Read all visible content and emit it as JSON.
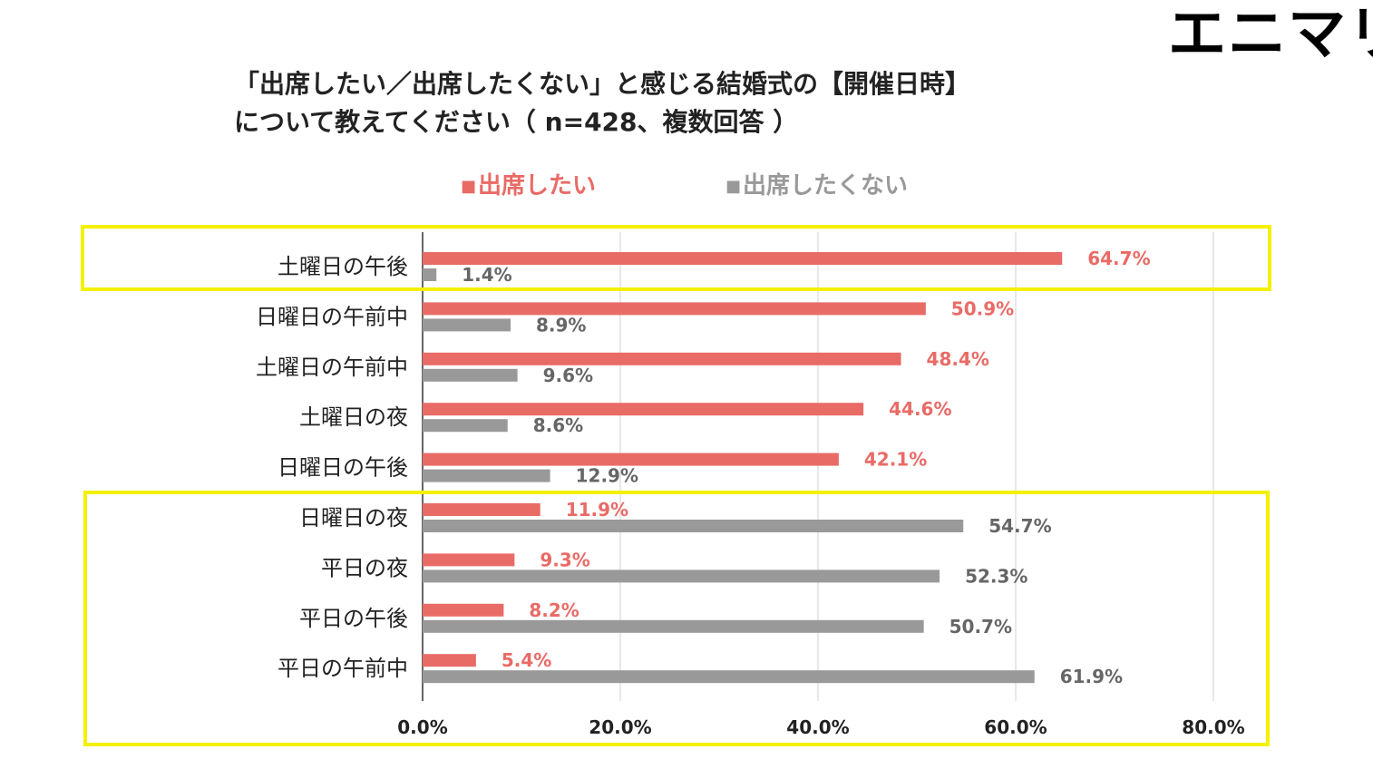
{
  "brand": {
    "logo_text": "エニマリ"
  },
  "chart_data": {
    "type": "bar",
    "orientation": "horizontal",
    "title_line1": "「出席したい／出席したくない」と感じる結婚式の【開催日時】",
    "title_line2": "について教えてください（ n=428、複数回答 ）",
    "categories": [
      "土曜日の午後",
      "日曜日の午前中",
      "土曜日の午前中",
      "土曜日の夜",
      "日曜日の午後",
      "日曜日の夜",
      "平日の夜",
      "平日の午後",
      "平日の午前中"
    ],
    "series": [
      {
        "name": "出席したい",
        "color": "#e96b66",
        "values": [
          64.7,
          50.9,
          48.4,
          44.6,
          42.1,
          11.9,
          9.3,
          8.2,
          5.4
        ]
      },
      {
        "name": "出席したくない",
        "color": "#999999",
        "values": [
          1.4,
          8.9,
          9.6,
          8.6,
          12.9,
          54.7,
          52.3,
          50.7,
          61.9
        ]
      }
    ],
    "legend_marker": "■",
    "value_suffix": "%",
    "xlim": [
      0,
      80
    ],
    "xticks": [
      0,
      20,
      40,
      60,
      80
    ],
    "xtick_labels": [
      "0.0%",
      "20.0%",
      "40.0%",
      "60.0%",
      "80.0%"
    ],
    "grid": true,
    "legend_position": "top"
  }
}
